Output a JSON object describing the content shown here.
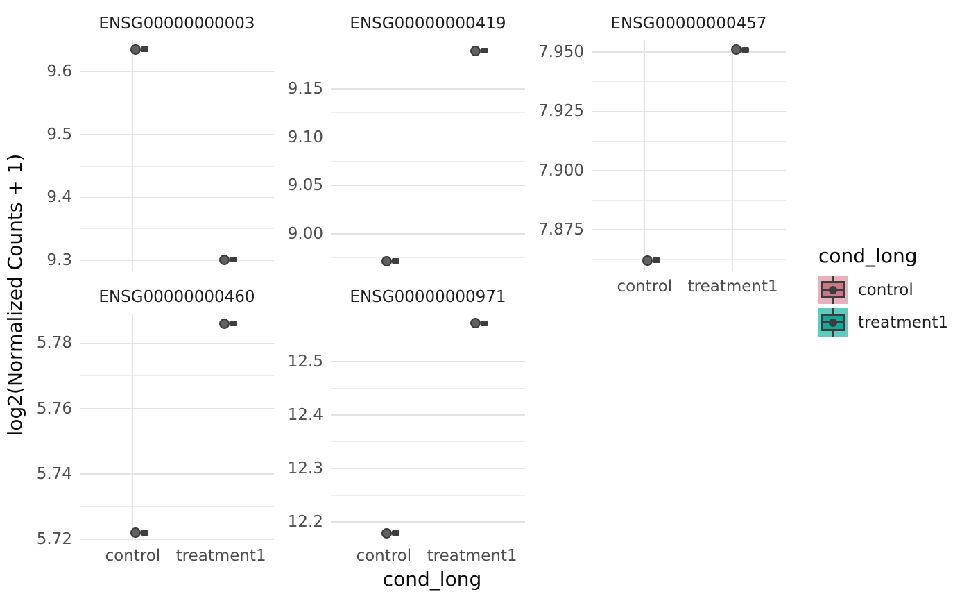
{
  "chart_data": {
    "type": "boxplot",
    "description": "Faceted plot of normalized gene expression counts per condition; each facet shows one gene with a jittered point and a collapsed boxplot per condition",
    "facet_by": "gene",
    "x_variable": "cond_long",
    "categories": [
      "control",
      "treatment1"
    ],
    "xlabel": "cond_long",
    "ylabel": "log2(Normalized Counts + 1)",
    "grid": "on",
    "legend_position": "right",
    "facets": [
      {
        "title": "ENSG00000000003",
        "ylim": [
          9.2823,
          9.6497
        ],
        "yticks": [
          {
            "value": 9.3,
            "label": "9.3"
          },
          {
            "value": 9.4,
            "label": "9.4"
          },
          {
            "value": 9.5,
            "label": "9.5"
          },
          {
            "value": 9.6,
            "label": "9.6"
          }
        ],
        "minor_ticks": [
          9.35,
          9.45,
          9.55
        ],
        "points": {
          "control": 9.635,
          "treatment1": 9.301
        },
        "show_x_labels": false
      },
      {
        "title": "ENSG00000000419",
        "ylim": [
          8.9613,
          9.2001
        ],
        "yticks": [
          {
            "value": 9.0,
            "label": "9.00"
          },
          {
            "value": 9.05,
            "label": "9.05"
          },
          {
            "value": 9.1,
            "label": "9.10"
          },
          {
            "value": 9.15,
            "label": "9.15"
          }
        ],
        "minor_ticks": [
          8.975,
          9.025,
          9.075,
          9.125,
          9.175
        ],
        "points": {
          "control": 8.972,
          "treatment1": 9.189
        },
        "show_x_labels": false
      },
      {
        "title": "ENSG00000000457",
        "ylim": [
          7.8574,
          7.955
        ],
        "yticks": [
          {
            "value": 7.875,
            "label": "7.875"
          },
          {
            "value": 7.9,
            "label": "7.900"
          },
          {
            "value": 7.925,
            "label": "7.925"
          },
          {
            "value": 7.95,
            "label": "7.950"
          }
        ],
        "minor_ticks": [
          7.8625,
          7.8875,
          7.9125,
          7.9375
        ],
        "points": {
          "control": 7.862,
          "treatment1": 7.951
        },
        "show_x_labels": true
      },
      {
        "title": "ENSG00000000460",
        "ylim": [
          5.7196,
          5.789
        ],
        "yticks": [
          {
            "value": 5.72,
            "label": "5.72"
          },
          {
            "value": 5.74,
            "label": "5.74"
          },
          {
            "value": 5.76,
            "label": "5.76"
          },
          {
            "value": 5.78,
            "label": "5.78"
          }
        ],
        "minor_ticks": [
          5.73,
          5.75,
          5.77
        ],
        "points": {
          "control": 5.722,
          "treatment1": 5.786
        },
        "show_x_labels": true
      },
      {
        "title": "ENSG00000000971",
        "ylim": [
          12.165,
          12.589
        ],
        "yticks": [
          {
            "value": 12.2,
            "label": "12.2"
          },
          {
            "value": 12.3,
            "label": "12.3"
          },
          {
            "value": 12.4,
            "label": "12.4"
          },
          {
            "value": 12.5,
            "label": "12.5"
          }
        ],
        "minor_ticks": [
          12.25,
          12.35,
          12.45,
          12.55
        ],
        "points": {
          "control": 12.179,
          "treatment1": 12.571
        },
        "show_x_labels": true
      }
    ],
    "legend": {
      "title": "cond_long",
      "entries": [
        {
          "label": "control",
          "box_fill": "#C97687",
          "key_bg": "#E7B1BB"
        },
        {
          "label": "treatment1",
          "box_fill": "#14A79A",
          "key_bg": "#5FCBBD"
        }
      ]
    },
    "style": {
      "background": "#FFFFFF",
      "grid_major": "#E3E3E3",
      "grid_minor": "#EDEDED",
      "tick_text": "#4D4D4D",
      "strip_text": "#1F1F1F",
      "title_text": "#0A0A0A",
      "point_fill": "#606060",
      "point_stroke": "#3A3A3A",
      "box_color": "#3E3E3E",
      "legend_glyph_line": "#3C3C3C"
    }
  }
}
